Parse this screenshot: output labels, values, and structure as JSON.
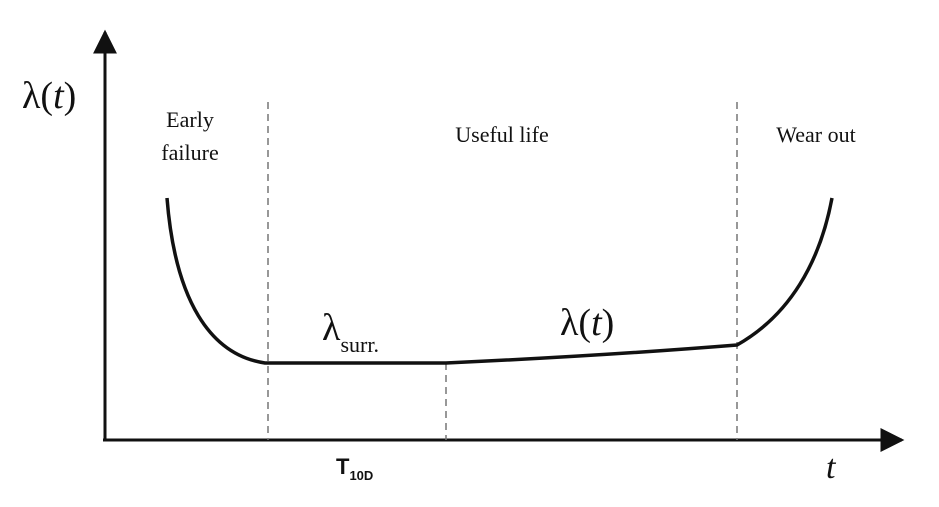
{
  "axes": {
    "y_label": {
      "prefix": "λ(",
      "variable": "t",
      "suffix": ")"
    },
    "x_label": "t"
  },
  "regions": {
    "early": [
      "Early",
      "failure"
    ],
    "useful": "Useful life",
    "wear": "Wear out"
  },
  "curve_labels": {
    "surr": {
      "base": "λ",
      "sub": "surr."
    },
    "rate": {
      "prefix": "λ(",
      "variable": "t",
      "suffix": ")"
    }
  },
  "marker": {
    "base": "T",
    "sub": "10D"
  }
}
